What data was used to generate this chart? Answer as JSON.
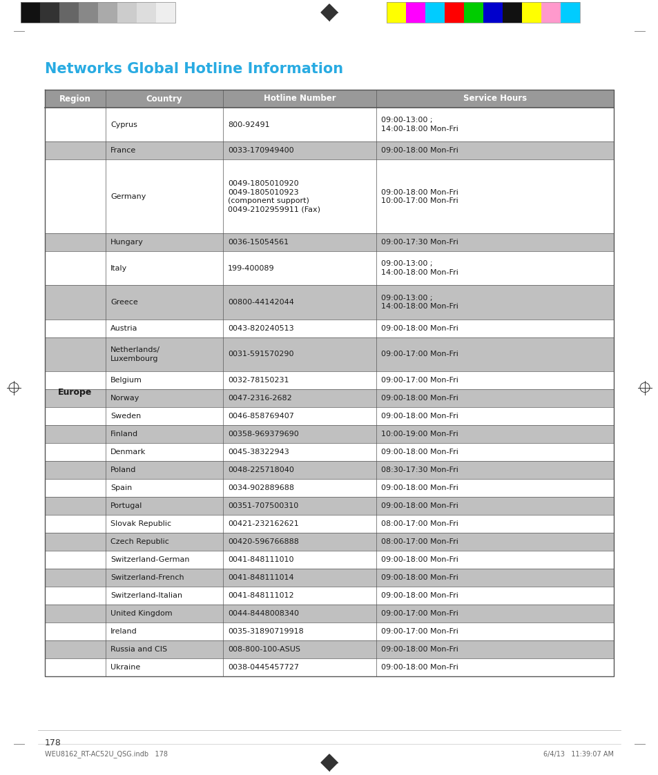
{
  "title": "Networks Global Hotline Information",
  "title_color": "#29ABE2",
  "title_fontsize": 15,
  "header": [
    "Region",
    "Country",
    "Hotline Number",
    "Service Hours"
  ],
  "header_bg": "#999999",
  "header_text_color": "#FFFFFF",
  "rows": [
    {
      "country": "Cyprus",
      "hotline": "800-92491",
      "hours": "09:00-13:00 ;\n14:00-18:00 Mon-Fri",
      "shaded": false
    },
    {
      "country": "France",
      "hotline": "0033-170949400",
      "hours": "09:00-18:00 Mon-Fri",
      "shaded": true
    },
    {
      "country": "Germany",
      "hotline": "0049-1805010920\n0049-1805010923\n(component support)\n0049-2102959911 (Fax)",
      "hours": "09:00-18:00 Mon-Fri\n10:00-17:00 Mon-Fri",
      "shaded": false
    },
    {
      "country": "Hungary",
      "hotline": "0036-15054561",
      "hours": "09:00-17:30 Mon-Fri",
      "shaded": true
    },
    {
      "country": "Italy",
      "hotline": "199-400089",
      "hours": "09:00-13:00 ;\n14:00-18:00 Mon-Fri",
      "shaded": false
    },
    {
      "country": "Greece",
      "hotline": "00800-44142044",
      "hours": "09:00-13:00 ;\n14:00-18:00 Mon-Fri",
      "shaded": true
    },
    {
      "country": "Austria",
      "hotline": "0043-820240513",
      "hours": "09:00-18:00 Mon-Fri",
      "shaded": false
    },
    {
      "country": "Netherlands/\nLuxembourg",
      "hotline": "0031-591570290",
      "hours": "09:00-17:00 Mon-Fri",
      "shaded": true
    },
    {
      "country": "Belgium",
      "hotline": "0032-78150231",
      "hours": "09:00-17:00 Mon-Fri",
      "shaded": false
    },
    {
      "country": "Norway",
      "hotline": "0047-2316-2682",
      "hours": "09:00-18:00 Mon-Fri",
      "shaded": true
    },
    {
      "country": "Sweden",
      "hotline": "0046-858769407",
      "hours": "09:00-18:00 Mon-Fri",
      "shaded": false
    },
    {
      "country": "Finland",
      "hotline": "00358-969379690",
      "hours": "10:00-19:00 Mon-Fri",
      "shaded": true
    },
    {
      "country": "Denmark",
      "hotline": "0045-38322943",
      "hours": "09:00-18:00 Mon-Fri",
      "shaded": false
    },
    {
      "country": "Poland",
      "hotline": "0048-225718040",
      "hours": "08:30-17:30 Mon-Fri",
      "shaded": true
    },
    {
      "country": "Spain",
      "hotline": "0034-902889688",
      "hours": "09:00-18:00 Mon-Fri",
      "shaded": false
    },
    {
      "country": "Portugal",
      "hotline": "00351-707500310",
      "hours": "09:00-18:00 Mon-Fri",
      "shaded": true
    },
    {
      "country": "Slovak Republic",
      "hotline": "00421-232162621",
      "hours": "08:00-17:00 Mon-Fri",
      "shaded": false
    },
    {
      "country": "Czech Republic",
      "hotline": "00420-596766888",
      "hours": "08:00-17:00 Mon-Fri",
      "shaded": true
    },
    {
      "country": "Switzerland-German",
      "hotline": "0041-848111010",
      "hours": "09:00-18:00 Mon-Fri",
      "shaded": false
    },
    {
      "country": "Switzerland-French",
      "hotline": "0041-848111014",
      "hours": "09:00-18:00 Mon-Fri",
      "shaded": true
    },
    {
      "country": "Switzerland-Italian",
      "hotline": "0041-848111012",
      "hours": "09:00-18:00 Mon-Fri",
      "shaded": false
    },
    {
      "country": "United Kingdom",
      "hotline": "0044-8448008340",
      "hours": "09:00-17:00 Mon-Fri",
      "shaded": true
    },
    {
      "country": "Ireland",
      "hotline": "0035-31890719918",
      "hours": "09:00-17:00 Mon-Fri",
      "shaded": false
    },
    {
      "country": "Russia and CIS",
      "hotline": "008-800-100-ASUS",
      "hours": "09:00-18:00 Mon-Fri",
      "shaded": true
    },
    {
      "country": "Ukraine",
      "hotline": "0038-0445457727",
      "hours": "09:00-18:00 Mon-Fri",
      "shaded": false
    }
  ],
  "region_label": "Europe",
  "shaded_color": "#C0C0C0",
  "unshaded_color": "#FFFFFF",
  "border_color": "#555555",
  "text_color": "#1a1a1a",
  "page_bg": "#FFFFFF",
  "page_number": "178",
  "footer_text": "WEU8162_RT-AC52U_QSG.indb   178",
  "footer_right": "6/4/13   11:39:07 AM",
  "strips_left": [
    "#111111",
    "#333333",
    "#666666",
    "#888888",
    "#AAAAAA",
    "#CCCCCC",
    "#DDDDDD",
    "#EEEEEE"
  ],
  "strips_right": [
    "#FFFF00",
    "#FF00FF",
    "#00CCFF",
    "#FF0000",
    "#00CC00",
    "#0000CC",
    "#111111",
    "#FFFF00",
    "#FF99CC",
    "#00CCFF"
  ]
}
